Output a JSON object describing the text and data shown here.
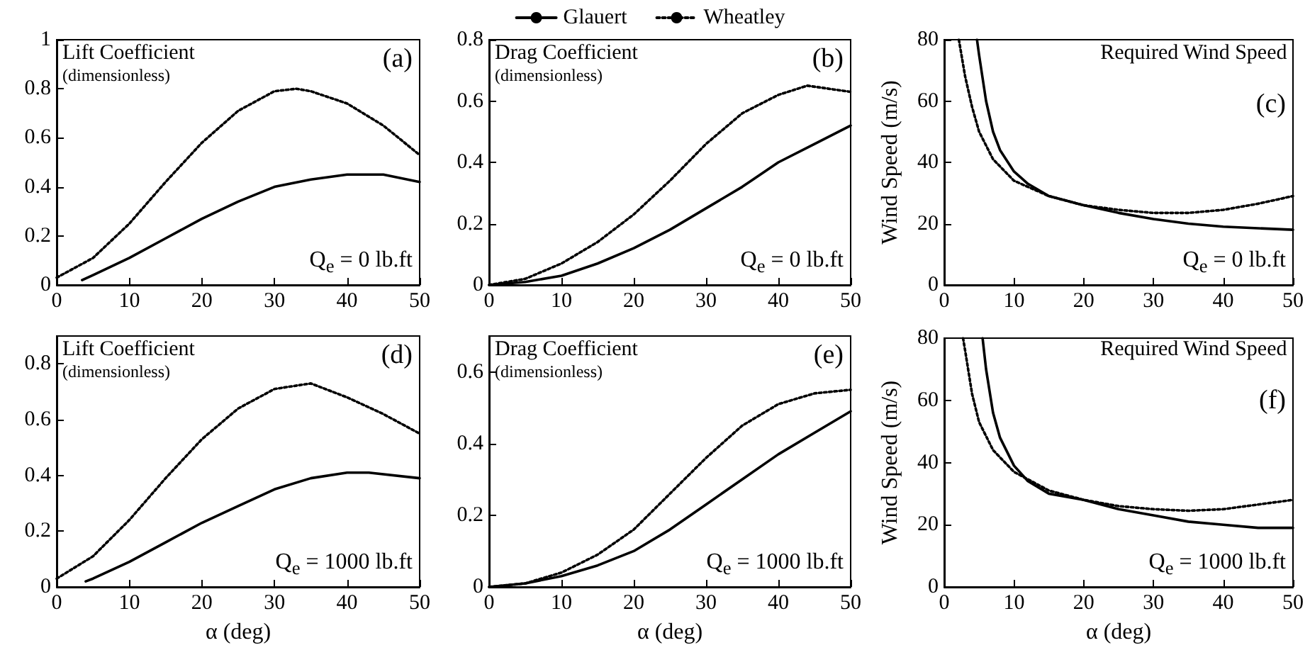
{
  "chart_data": [
    {
      "type": "line",
      "title": "Lift Coefficient",
      "subtitle": "(dimensionless)",
      "annotations": [
        "(a)",
        "Q$_{e}$ = 0 lb.ft"
      ],
      "xlim": [
        0,
        50
      ],
      "xticks": [
        0,
        10,
        20,
        30,
        40,
        50
      ],
      "ylim": [
        0,
        1
      ],
      "yticks": [
        0,
        0.2,
        0.4,
        0.6,
        0.8,
        1
      ],
      "marker": "none",
      "series": [
        {
          "color": "#000000",
          "line_style": "solid",
          "x": [
            3.5,
            5,
            10,
            15,
            20,
            25,
            30,
            35,
            40,
            45,
            50
          ],
          "values": [
            0.02,
            0.04,
            0.11,
            0.19,
            0.27,
            0.34,
            0.4,
            0.43,
            0.45,
            0.45,
            0.42
          ]
        },
        {
          "color": "#000000",
          "line_style": "dotted",
          "x": [
            0,
            5,
            10,
            15,
            20,
            25,
            30,
            33,
            35,
            40,
            45,
            50
          ],
          "values": [
            0.03,
            0.11,
            0.25,
            0.42,
            0.58,
            0.71,
            0.79,
            0.8,
            0.79,
            0.74,
            0.65,
            0.53
          ]
        }
      ]
    },
    {
      "type": "line",
      "title": "Drag Coefficient",
      "subtitle": "(dimensionless)",
      "annotations": [
        "(b)",
        "Q$_{e}$ = 0 lb.ft"
      ],
      "xlim": [
        0,
        50
      ],
      "xticks": [
        0,
        10,
        20,
        30,
        40,
        50
      ],
      "ylim": [
        0,
        0.8
      ],
      "yticks": [
        0,
        0.2,
        0.4,
        0.6,
        0.8
      ],
      "marker": "none",
      "legend": "top",
      "series": [
        {
          "name": "Glauert",
          "color": "#000000",
          "line_style": "solid",
          "x": [
            0,
            5,
            10,
            15,
            20,
            25,
            30,
            35,
            40,
            45,
            50
          ],
          "values": [
            0,
            0.01,
            0.03,
            0.07,
            0.12,
            0.18,
            0.25,
            0.32,
            0.4,
            0.46,
            0.52
          ]
        },
        {
          "name": "Wheatley",
          "color": "#000000",
          "line_style": "dotted",
          "x": [
            0,
            5,
            10,
            15,
            20,
            25,
            30,
            35,
            40,
            44,
            50
          ],
          "values": [
            0,
            0.02,
            0.07,
            0.14,
            0.23,
            0.34,
            0.46,
            0.56,
            0.62,
            0.65,
            0.63
          ]
        }
      ]
    },
    {
      "type": "line",
      "title": "Required Wind Speed",
      "annotations": [
        "(c)",
        "Q$_{e}$ = 0 lb.ft"
      ],
      "ylabel": "Wind Speed (m/s)",
      "xlim": [
        0,
        50
      ],
      "xticks": [
        0,
        10,
        20,
        30,
        40,
        50
      ],
      "ylim": [
        0,
        80
      ],
      "yticks": [
        0,
        20,
        40,
        60,
        80
      ],
      "marker": "none",
      "series": [
        {
          "color": "#000000",
          "line_style": "solid",
          "x": [
            4.7,
            5,
            6,
            7,
            8,
            10,
            12,
            15,
            20,
            25,
            30,
            35,
            40,
            45,
            50
          ],
          "values": [
            80,
            75,
            60,
            50,
            44,
            37,
            33,
            29,
            26,
            23.5,
            21.5,
            20,
            19,
            18.5,
            18
          ]
        },
        {
          "color": "#000000",
          "line_style": "dotted",
          "x": [
            2.1,
            3,
            4,
            5,
            7,
            10,
            15,
            20,
            25,
            30,
            35,
            40,
            45,
            50
          ],
          "values": [
            80,
            68,
            58,
            50,
            41,
            34,
            29,
            26,
            24.5,
            23.5,
            23.5,
            24.5,
            26.5,
            29
          ]
        }
      ]
    },
    {
      "type": "line",
      "title": "Lift Coefficient",
      "subtitle": "(dimensionless)",
      "annotations": [
        "(d)",
        "Q$_{e}$ = 1000 lb.ft"
      ],
      "xlabel": "α (deg)",
      "xlim": [
        0,
        50
      ],
      "xticks": [
        0,
        10,
        20,
        30,
        40,
        50
      ],
      "ylim": [
        0,
        0.9
      ],
      "yticks": [
        0,
        0.2,
        0.4,
        0.6,
        0.8
      ],
      "marker": "none",
      "series": [
        {
          "color": "#000000",
          "line_style": "solid",
          "x": [
            4,
            5,
            10,
            15,
            20,
            25,
            30,
            35,
            40,
            43,
            50
          ],
          "values": [
            0.02,
            0.03,
            0.09,
            0.16,
            0.23,
            0.29,
            0.35,
            0.39,
            0.41,
            0.41,
            0.39
          ]
        },
        {
          "color": "#000000",
          "line_style": "dotted",
          "x": [
            0,
            5,
            10,
            15,
            20,
            25,
            30,
            35,
            40,
            45,
            50
          ],
          "values": [
            0.03,
            0.11,
            0.24,
            0.39,
            0.53,
            0.64,
            0.71,
            0.73,
            0.68,
            0.62,
            0.55
          ]
        }
      ]
    },
    {
      "type": "line",
      "title": "Drag Coefficient",
      "subtitle": "(dimensionless)",
      "annotations": [
        "(e)",
        "Q$_{e}$ = 1000 lb.ft"
      ],
      "xlabel": "α (deg)",
      "xlim": [
        0,
        50
      ],
      "xticks": [
        0,
        10,
        20,
        30,
        40,
        50
      ],
      "ylim": [
        0,
        0.7
      ],
      "yticks": [
        0,
        0.2,
        0.4,
        0.6
      ],
      "marker": "none",
      "series": [
        {
          "color": "#000000",
          "line_style": "solid",
          "x": [
            0,
            5,
            10,
            15,
            20,
            25,
            30,
            35,
            40,
            45,
            50
          ],
          "values": [
            0,
            0.01,
            0.03,
            0.06,
            0.1,
            0.16,
            0.23,
            0.3,
            0.37,
            0.43,
            0.49
          ]
        },
        {
          "color": "#000000",
          "line_style": "dotted",
          "x": [
            0,
            5,
            10,
            15,
            20,
            25,
            30,
            35,
            40,
            45,
            50
          ],
          "values": [
            0,
            0.01,
            0.04,
            0.09,
            0.16,
            0.26,
            0.36,
            0.45,
            0.51,
            0.54,
            0.55
          ]
        }
      ]
    },
    {
      "type": "line",
      "title": "Required Wind Speed",
      "annotations": [
        "(f)",
        "Q$_{e}$ = 1000 lb.ft"
      ],
      "xlabel": "α (deg)",
      "ylabel": "Wind Speed (m/s)",
      "xlim": [
        0,
        50
      ],
      "xticks": [
        0,
        10,
        20,
        30,
        40,
        50
      ],
      "ylim": [
        0,
        80
      ],
      "yticks": [
        0,
        20,
        40,
        60,
        80
      ],
      "marker": "none",
      "series": [
        {
          "color": "#000000",
          "line_style": "solid",
          "x": [
            5.5,
            6,
            7,
            8,
            10,
            12,
            15,
            20,
            25,
            30,
            35,
            40,
            45,
            50
          ],
          "values": [
            80,
            70,
            56,
            48,
            39,
            34,
            30,
            28,
            25,
            23,
            21,
            20,
            19,
            19
          ]
        },
        {
          "color": "#000000",
          "line_style": "dotted",
          "x": [
            2.7,
            3,
            4,
            5,
            7,
            10,
            15,
            20,
            25,
            30,
            35,
            40,
            45,
            50
          ],
          "values": [
            80,
            76,
            62,
            53,
            44,
            37,
            31,
            28,
            26,
            25,
            24.5,
            25,
            26.5,
            28
          ]
        }
      ]
    }
  ]
}
